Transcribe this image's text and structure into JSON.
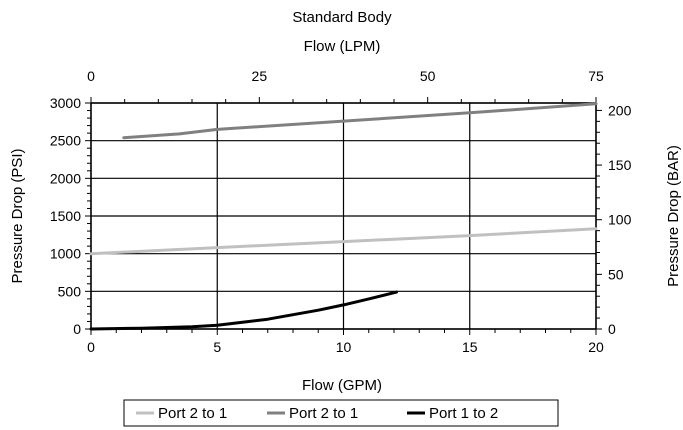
{
  "chart_data": {
    "type": "line",
    "title": "Standard Body",
    "top_axis": {
      "label": "Flow (LPM)",
      "range": [
        0,
        75
      ],
      "ticks": [
        "0",
        "25",
        "50",
        "75"
      ]
    },
    "x_axis": {
      "label": "Flow (GPM)",
      "range": [
        0,
        20
      ],
      "ticks": [
        "0",
        "5",
        "10",
        "15",
        "20"
      ]
    },
    "y_axis": {
      "label": "Pressure Drop (PSI)",
      "range": [
        0,
        3000
      ],
      "ticks": [
        "0",
        "500",
        "1000",
        "1500",
        "2000",
        "2500",
        "3000"
      ]
    },
    "y2_axis": {
      "label": "Pressure Drop (BAR)",
      "range": [
        0,
        206.8
      ],
      "ticks": [
        "0",
        "50",
        "100",
        "150",
        "200"
      ]
    },
    "grid": "major vertical and horizontal",
    "legend_position": "bottom",
    "series": [
      {
        "name": "Port 2 to 1",
        "color": "#c0c0c0",
        "points": [
          [
            0,
            1000
          ],
          [
            5,
            1080
          ],
          [
            10,
            1160
          ],
          [
            15,
            1240
          ],
          [
            20,
            1330
          ]
        ]
      },
      {
        "name": "Port 2 to 1",
        "color": "#808080",
        "points": [
          [
            1.3,
            2540
          ],
          [
            3.5,
            2590
          ],
          [
            5,
            2650
          ],
          [
            10,
            2760
          ],
          [
            15,
            2870
          ],
          [
            20,
            2990
          ]
        ]
      },
      {
        "name": "Port 1 to 2",
        "color": "#000000",
        "points": [
          [
            0,
            0
          ],
          [
            2,
            10
          ],
          [
            4,
            30
          ],
          [
            5,
            50
          ],
          [
            6,
            90
          ],
          [
            7,
            130
          ],
          [
            8,
            190
          ],
          [
            9,
            250
          ],
          [
            10,
            320
          ],
          [
            11,
            400
          ],
          [
            12.1,
            490
          ]
        ]
      }
    ]
  }
}
